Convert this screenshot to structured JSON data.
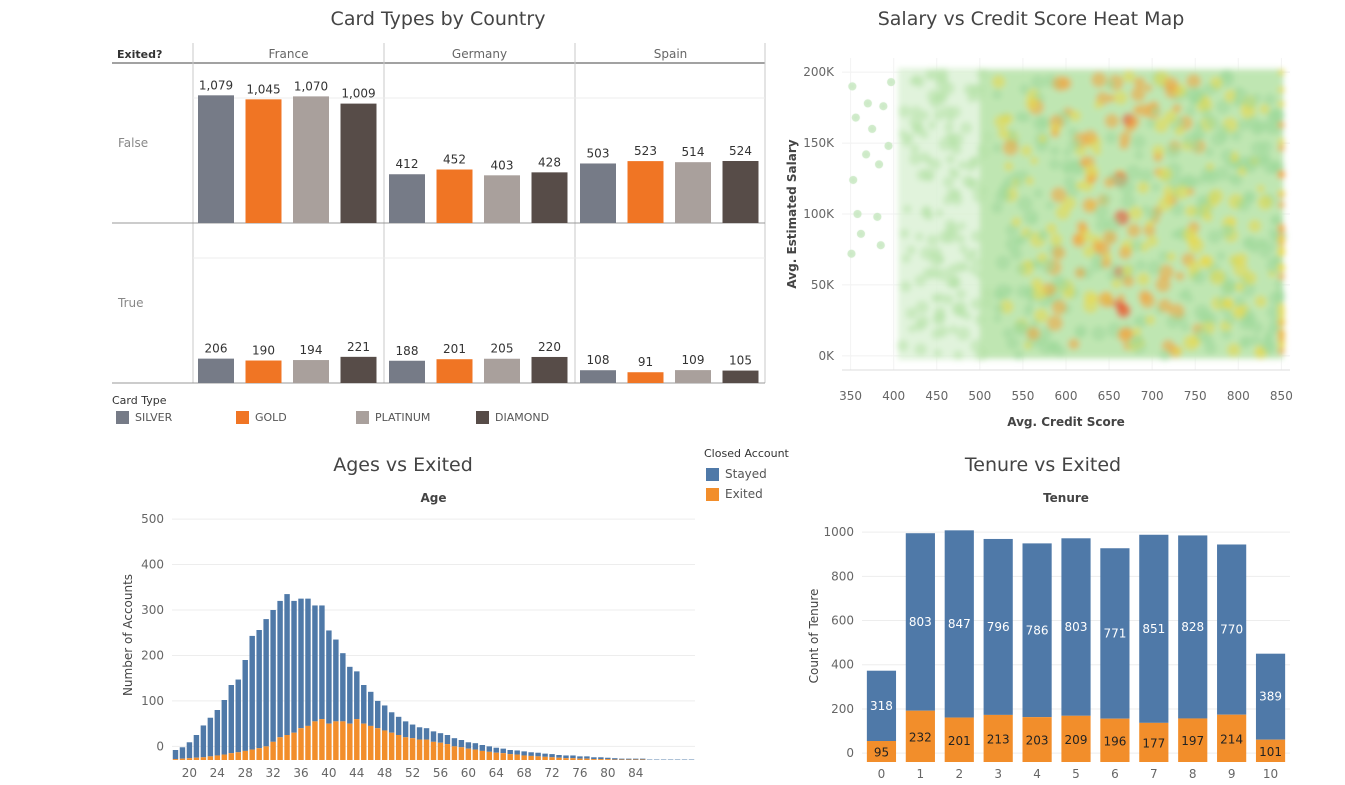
{
  "colors": {
    "silver": "#767b87",
    "gold": "#f07524",
    "platinum": "#a9a09c",
    "diamond": "#574c48",
    "stayed": "#4f79a8",
    "exited": "#f28e2b",
    "grid": "#e6e6e6",
    "axis": "#bbbbbb",
    "text": "#555555"
  },
  "card_panel": {
    "title": "Card Types by Country",
    "row_header": "Exited?",
    "legend_title": "Card Type"
  },
  "heat_panel": {
    "title": "Salary vs Credit Score Heat Map"
  },
  "age_panel": {
    "title": "Ages vs Exited",
    "legend_title": "Closed Account"
  },
  "tenure_panel": {
    "title": "Tenure vs Exited"
  },
  "chart_data": [
    {
      "type": "bar",
      "title": "Card Types by Country",
      "columns": [
        "France",
        "Germany",
        "Spain"
      ],
      "rows": [
        "False",
        "True"
      ],
      "row_header": "Exited?",
      "categories": [
        "SILVER",
        "GOLD",
        "PLATINUM",
        "DIAMOND"
      ],
      "legend_title": "Card Type",
      "values": {
        "False": {
          "France": [
            1079,
            1045,
            1070,
            1009
          ],
          "Germany": [
            412,
            452,
            403,
            428
          ],
          "Spain": [
            503,
            523,
            514,
            524
          ]
        },
        "True": {
          "France": [
            206,
            190,
            194,
            221
          ],
          "Germany": [
            188,
            201,
            205,
            220
          ],
          "Spain": [
            108,
            91,
            109,
            105
          ]
        }
      },
      "labels": {
        "False": {
          "France": [
            "1,079",
            "1,045",
            "1,070",
            "1,009"
          ],
          "Germany": [
            "412",
            "452",
            "403",
            "428"
          ],
          "Spain": [
            "503",
            "523",
            "514",
            "524"
          ]
        },
        "True": {
          "France": [
            "206",
            "190",
            "194",
            "221"
          ],
          "Germany": [
            "188",
            "201",
            "205",
            "220"
          ],
          "Spain": [
            "108",
            "91",
            "109",
            "105"
          ]
        }
      }
    },
    {
      "type": "heatmap",
      "title": "Salary vs Credit Score Heat Map",
      "xlabel": "Avg. Credit Score",
      "ylabel": "Avg. Estimated Salary",
      "xlim": [
        340,
        860
      ],
      "ylim": [
        -10000,
        210000
      ],
      "xticks": [
        350,
        400,
        450,
        500,
        550,
        600,
        650,
        700,
        750,
        800,
        850
      ],
      "yticks": [
        0,
        50000,
        100000,
        150000,
        200000
      ],
      "ytick_labels": [
        "0K",
        "50K",
        "100K",
        "150K",
        "200K"
      ],
      "density_peak_credit_score": 660,
      "sparse_points": [
        [
          352,
          190000
        ],
        [
          356,
          168000
        ],
        [
          353,
          124000
        ],
        [
          358,
          100000
        ],
        [
          351,
          72000
        ],
        [
          370,
          178000
        ],
        [
          368,
          142000
        ],
        [
          375,
          160000
        ],
        [
          381,
          98000
        ],
        [
          385,
          78000
        ],
        [
          388,
          176000
        ],
        [
          383,
          135000
        ],
        [
          394,
          148000
        ],
        [
          397,
          193000
        ],
        [
          362,
          86000
        ]
      ]
    },
    {
      "type": "bar",
      "stacked": true,
      "title": "Ages vs Exited",
      "xlabel": "Age",
      "ylabel": "Number of Accounts",
      "legend_title": "Closed Account",
      "x": [
        18,
        19,
        20,
        21,
        22,
        23,
        24,
        25,
        26,
        27,
        28,
        29,
        30,
        31,
        32,
        33,
        34,
        35,
        36,
        37,
        38,
        39,
        40,
        41,
        42,
        43,
        44,
        45,
        46,
        47,
        48,
        49,
        50,
        51,
        52,
        53,
        54,
        55,
        56,
        57,
        58,
        59,
        60,
        61,
        62,
        63,
        64,
        65,
        66,
        67,
        68,
        69,
        70,
        71,
        72,
        73,
        74,
        75,
        76,
        77,
        78,
        79,
        80,
        81,
        82,
        83,
        84,
        85,
        86,
        87,
        88,
        89,
        90,
        91,
        92
      ],
      "xticks": [
        20,
        24,
        28,
        32,
        36,
        40,
        44,
        48,
        52,
        56,
        60,
        64,
        68,
        72,
        76,
        80,
        84
      ],
      "ylim": [
        -30,
        520
      ],
      "yticks": [
        0,
        100,
        200,
        300,
        400,
        500
      ],
      "series": [
        {
          "name": "Stayed",
          "values": [
            20,
            25,
            35,
            50,
            70,
            85,
            100,
            120,
            150,
            160,
            200,
            250,
            260,
            280,
            290,
            300,
            310,
            290,
            285,
            280,
            255,
            250,
            205,
            180,
            150,
            125,
            105,
            85,
            75,
            60,
            55,
            45,
            40,
            35,
            30,
            27,
            25,
            23,
            21,
            20,
            18,
            16,
            14,
            14,
            13,
            12,
            11,
            10,
            9,
            9,
            9,
            8,
            8,
            7,
            7,
            6,
            6,
            6,
            5,
            5,
            4,
            4,
            3,
            3,
            2,
            2,
            2,
            2,
            1,
            1,
            1,
            1,
            1,
            1,
            1
          ]
        },
        {
          "name": "Exited",
          "values": [
            2,
            3,
            4,
            5,
            6,
            8,
            10,
            12,
            15,
            17,
            20,
            23,
            26,
            30,
            40,
            50,
            55,
            60,
            70,
            75,
            85,
            90,
            80,
            85,
            85,
            80,
            90,
            80,
            75,
            70,
            65,
            60,
            55,
            50,
            48,
            45,
            45,
            40,
            38,
            35,
            30,
            28,
            25,
            23,
            20,
            18,
            16,
            15,
            13,
            12,
            10,
            9,
            8,
            7,
            6,
            5,
            4,
            4,
            3,
            3,
            2,
            2,
            2,
            1,
            1,
            1,
            1,
            1,
            0,
            0,
            0,
            0,
            0,
            0,
            0
          ]
        }
      ]
    },
    {
      "type": "bar",
      "stacked": true,
      "title": "Tenure vs Exited",
      "xlabel": "Tenure",
      "ylabel": "Count of Tenure",
      "categories": [
        "0",
        "1",
        "2",
        "3",
        "4",
        "5",
        "6",
        "7",
        "8",
        "9",
        "10"
      ],
      "ylim": [
        -40,
        1100
      ],
      "yticks": [
        0,
        200,
        400,
        600,
        800,
        1000
      ],
      "series": [
        {
          "name": "Stayed",
          "values": [
            318,
            803,
            847,
            796,
            786,
            803,
            771,
            851,
            828,
            770,
            389
          ]
        },
        {
          "name": "Exited",
          "values": [
            95,
            232,
            201,
            213,
            203,
            209,
            196,
            177,
            197,
            214,
            101
          ]
        }
      ]
    }
  ]
}
